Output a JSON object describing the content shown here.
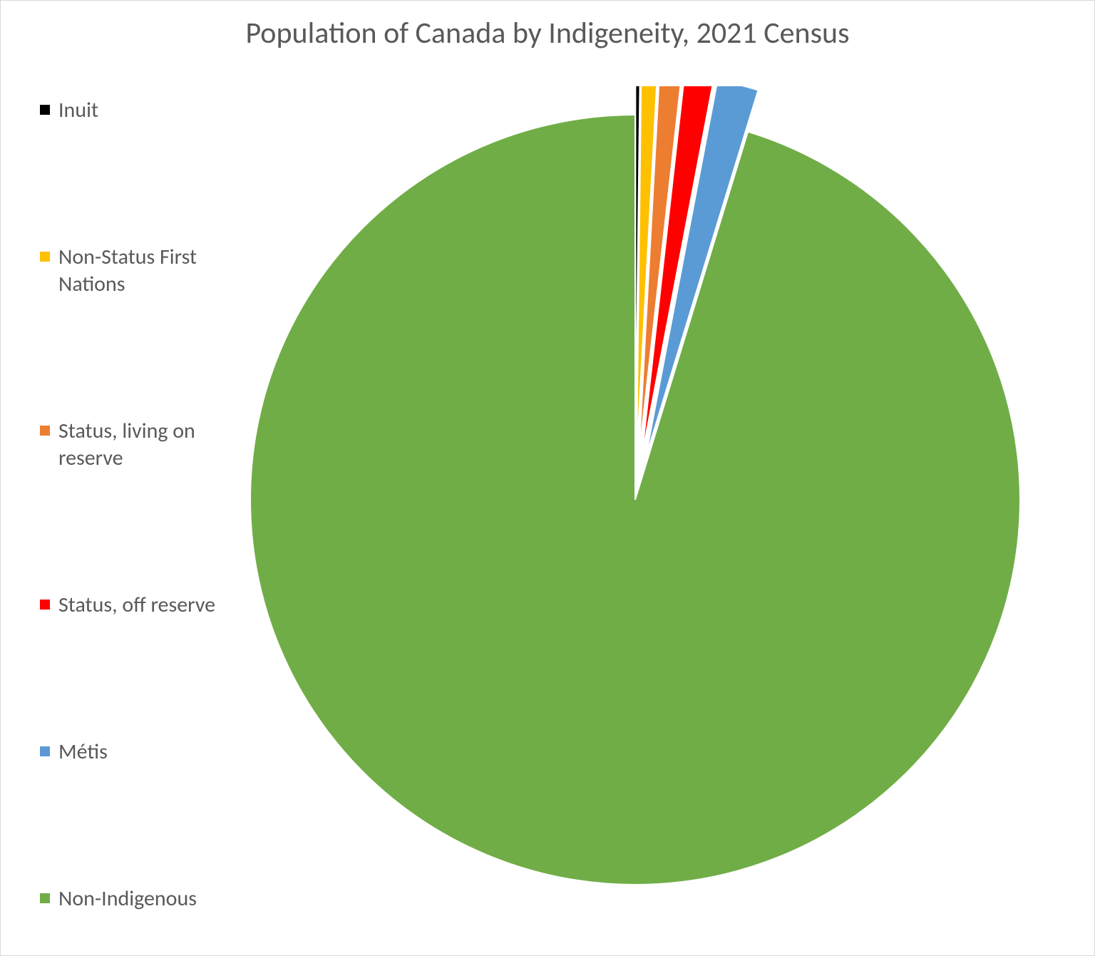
{
  "chart": {
    "type": "pie",
    "title": "Population of Canada by Indigeneity, 2021 Census",
    "title_fontsize": 42,
    "title_color": "#595959",
    "background_color": "#ffffff",
    "border_color": "#d9d9d9",
    "legend_position": "left",
    "legend_fontsize": 30,
    "legend_text_color": "#595959",
    "legend_marker_size": 14,
    "pie_radius": 540,
    "exploded_offset": 60,
    "slice_stroke_color": "#ffffff",
    "slice_stroke_width": 2,
    "series": [
      {
        "label": "Inuit",
        "value": 0.19,
        "color": "#000000",
        "exploded": true
      },
      {
        "label": "Non-Status First Nations",
        "value": 0.67,
        "color": "#ffc000",
        "exploded": true
      },
      {
        "label": "Status, living on reserve",
        "value": 0.92,
        "color": "#ed7d31",
        "exploded": true
      },
      {
        "label": "Status, off reserve",
        "value": 1.22,
        "color": "#ff0000",
        "exploded": true
      },
      {
        "label": "Métis",
        "value": 1.73,
        "color": "#5b9bd5",
        "exploded": true
      },
      {
        "label": "Non-Indigenous",
        "value": 95.27,
        "color": "#70ad47",
        "exploded": false
      }
    ]
  }
}
